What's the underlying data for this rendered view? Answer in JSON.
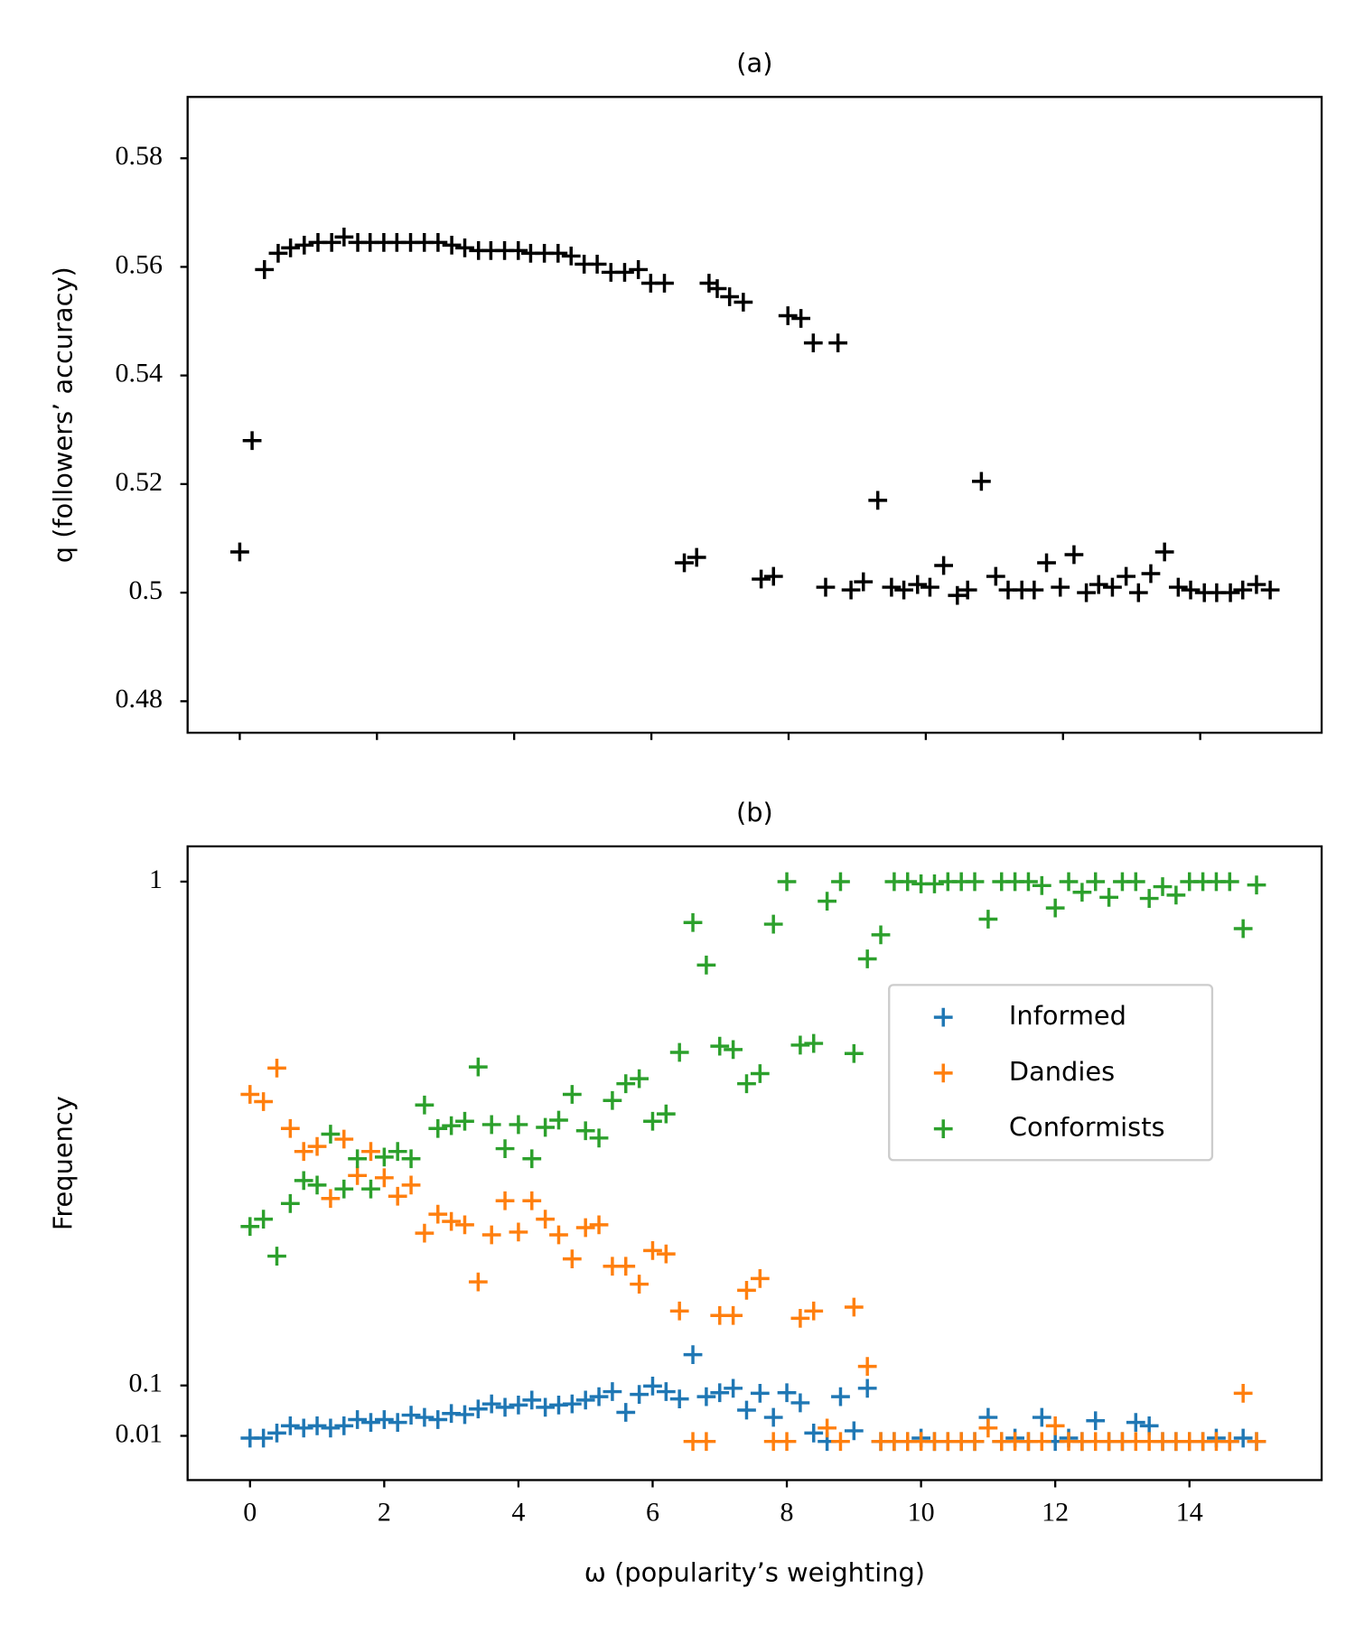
{
  "chart_data": [
    {
      "type": "scatter",
      "title": "(a)",
      "ylabel": "q (followers’ accuracy)",
      "color": "#000000",
      "xlim": [
        -0.76,
        15.77
      ],
      "xticks": [
        0,
        2,
        4,
        6,
        8,
        10,
        12,
        14
      ],
      "ylim": [
        0.4742,
        0.5913
      ],
      "yticks": [
        0.48,
        0.5,
        0.52,
        0.54,
        0.56,
        0.58
      ],
      "x": [
        0,
        0.18,
        0.36,
        0.56,
        0.74,
        0.94,
        1.14,
        1.34,
        1.52,
        1.72,
        1.9,
        2.1,
        2.29,
        2.49,
        2.69,
        2.89,
        3.09,
        3.28,
        3.48,
        3.66,
        3.86,
        4.06,
        4.24,
        4.44,
        4.64,
        4.83,
        5.02,
        5.21,
        5.41,
        5.61,
        5.81,
        5.99,
        6.19,
        6.48,
        6.66,
        6.84,
        6.96,
        7.14,
        7.34,
        7.6,
        7.78,
        7.99,
        8.18,
        8.36,
        8.54,
        8.72,
        8.91,
        9.09,
        9.3,
        9.5,
        9.68,
        9.88,
        10.06,
        10.26,
        10.46,
        10.61,
        10.81,
        11.02,
        11.2,
        11.4,
        11.58,
        11.76,
        11.96,
        12.16,
        12.34,
        12.52,
        12.72,
        12.92,
        13.1,
        13.28,
        13.48,
        13.68,
        13.86,
        14.06,
        14.24,
        14.44,
        14.62,
        14.82,
        15.02
      ],
      "values": [
        0.5075,
        0.528,
        0.5595,
        0.5625,
        0.5635,
        0.564,
        0.5645,
        0.5645,
        0.5655,
        0.5645,
        0.5645,
        0.5645,
        0.5645,
        0.5645,
        0.5645,
        0.5645,
        0.564,
        0.5635,
        0.563,
        0.563,
        0.563,
        0.563,
        0.5625,
        0.5625,
        0.5625,
        0.562,
        0.5605,
        0.5605,
        0.559,
        0.559,
        0.5595,
        0.557,
        0.557,
        0.5055,
        0.5065,
        0.557,
        0.556,
        0.5545,
        0.5535,
        0.5025,
        0.503,
        0.551,
        0.5505,
        0.546,
        0.501,
        0.546,
        0.5005,
        0.502,
        0.517,
        0.501,
        0.5005,
        0.5015,
        0.501,
        0.505,
        0.4995,
        0.5005,
        0.5205,
        0.503,
        0.5005,
        0.5005,
        0.5005,
        0.5055,
        0.501,
        0.507,
        0.5,
        0.5015,
        0.501,
        0.503,
        0.5,
        0.5035,
        0.5075,
        0.501,
        0.5005,
        0.5,
        0.5,
        0.5,
        0.5005,
        0.5015,
        0.5005
      ]
    },
    {
      "type": "scatter",
      "title": "(b)",
      "xlabel": "ω (popularity’s weighting)",
      "ylabel": "Frequency",
      "xlim": [
        -0.93,
        15.97
      ],
      "xticks": [
        0,
        2,
        4,
        6,
        8,
        10,
        12,
        14
      ],
      "ylim": [
        -0.069,
        1.063
      ],
      "yticks": [
        0.01,
        0.1,
        1
      ],
      "legend": "center right",
      "x": [
        0,
        0.2,
        0.4,
        0.6,
        0.8,
        1,
        1.2,
        1.4,
        1.6,
        1.8,
        2,
        2.2,
        2.4,
        2.6,
        2.8,
        3,
        3.2,
        3.4,
        3.6,
        3.8,
        4,
        4.2,
        4.4,
        4.6,
        4.8,
        5,
        5.2,
        5.4,
        5.6,
        5.8,
        6,
        6.2,
        6.4,
        6.6,
        6.8,
        7,
        7.2,
        7.4,
        7.6,
        7.8,
        8,
        8.2,
        8.4,
        8.6,
        8.8,
        9,
        9.2,
        9.4,
        9.6,
        9.8,
        10,
        10.2,
        10.4,
        10.6,
        10.8,
        11,
        11.2,
        11.4,
        11.6,
        11.8,
        12,
        12.2,
        12.4,
        12.6,
        12.8,
        13,
        13.2,
        13.4,
        13.6,
        13.8,
        14,
        14.2,
        14.4,
        14.6,
        14.8,
        15
      ],
      "series": [
        {
          "name": "Informed",
          "color": "#1f77b4",
          "values": [
            0.006,
            0.006,
            0.015,
            0.028,
            0.024,
            0.028,
            0.024,
            0.028,
            0.039,
            0.034,
            0.039,
            0.034,
            0.047,
            0.043,
            0.039,
            0.05,
            0.048,
            0.058,
            0.067,
            0.061,
            0.065,
            0.074,
            0.061,
            0.065,
            0.067,
            0.074,
            0.08,
            0.089,
            0.052,
            0.084,
            0.099,
            0.089,
            0.076,
            0.155,
            0.08,
            0.087,
            0.095,
            0.056,
            0.086,
            0.043,
            0.087,
            0.069,
            0.015,
            0,
            0.08,
            0.019,
            0.095,
            0,
            0,
            0,
            0.006,
            0,
            0,
            0,
            0,
            0.043,
            0,
            0.006,
            0,
            0.043,
            0,
            0.006,
            0,
            0.037,
            0,
            0,
            0.034,
            0.028,
            0,
            0,
            0,
            0,
            0.006,
            0,
            0.006,
            0
          ]
        },
        {
          "name": "Dandies",
          "color": "#ff7f0e",
          "values": [
            0.62,
            0.607,
            0.667,
            0.559,
            0.518,
            0.527,
            0.434,
            0.54,
            0.475,
            0.518,
            0.471,
            0.438,
            0.458,
            0.372,
            0.406,
            0.393,
            0.387,
            0.285,
            0.369,
            0.43,
            0.374,
            0.43,
            0.397,
            0.369,
            0.326,
            0.382,
            0.387,
            0.313,
            0.313,
            0.281,
            0.341,
            0.335,
            0.233,
            0,
            0,
            0.225,
            0.225,
            0.27,
            0.291,
            0,
            0,
            0.22,
            0.233,
            0.024,
            0,
            0.24,
            0.134,
            0,
            0,
            0,
            0,
            0,
            0,
            0,
            0,
            0.024,
            0,
            0,
            0,
            0,
            0.028,
            0,
            0,
            0,
            0,
            0,
            0,
            0,
            0,
            0,
            0,
            0,
            0,
            0,
            0.086,
            0
          ]
        },
        {
          "name": "Conformists",
          "color": "#2ca02c",
          "values": [
            0.384,
            0.397,
            0.331,
            0.425,
            0.466,
            0.458,
            0.549,
            0.451,
            0.505,
            0.451,
            0.508,
            0.518,
            0.505,
            0.601,
            0.559,
            0.564,
            0.572,
            0.669,
            0.566,
            0.523,
            0.566,
            0.505,
            0.561,
            0.574,
            0.62,
            0.555,
            0.542,
            0.609,
            0.639,
            0.648,
            0.572,
            0.585,
            0.695,
            0.927,
            0.851,
            0.706,
            0.7,
            0.639,
            0.657,
            0.924,
            1,
            0.708,
            0.711,
            0.965,
            1,
            0.693,
            0.862,
            0.905,
            1,
            1,
            0.996,
            0.996,
            1,
            1,
            1,
            0.933,
            1,
            1,
            1,
            0.993,
            0.953,
            1,
            0.981,
            1,
            0.972,
            1,
            1,
            0.97,
            0.991,
            0.976,
            1,
            1,
            1,
            1,
            0.916,
            0.994
          ]
        }
      ]
    }
  ]
}
